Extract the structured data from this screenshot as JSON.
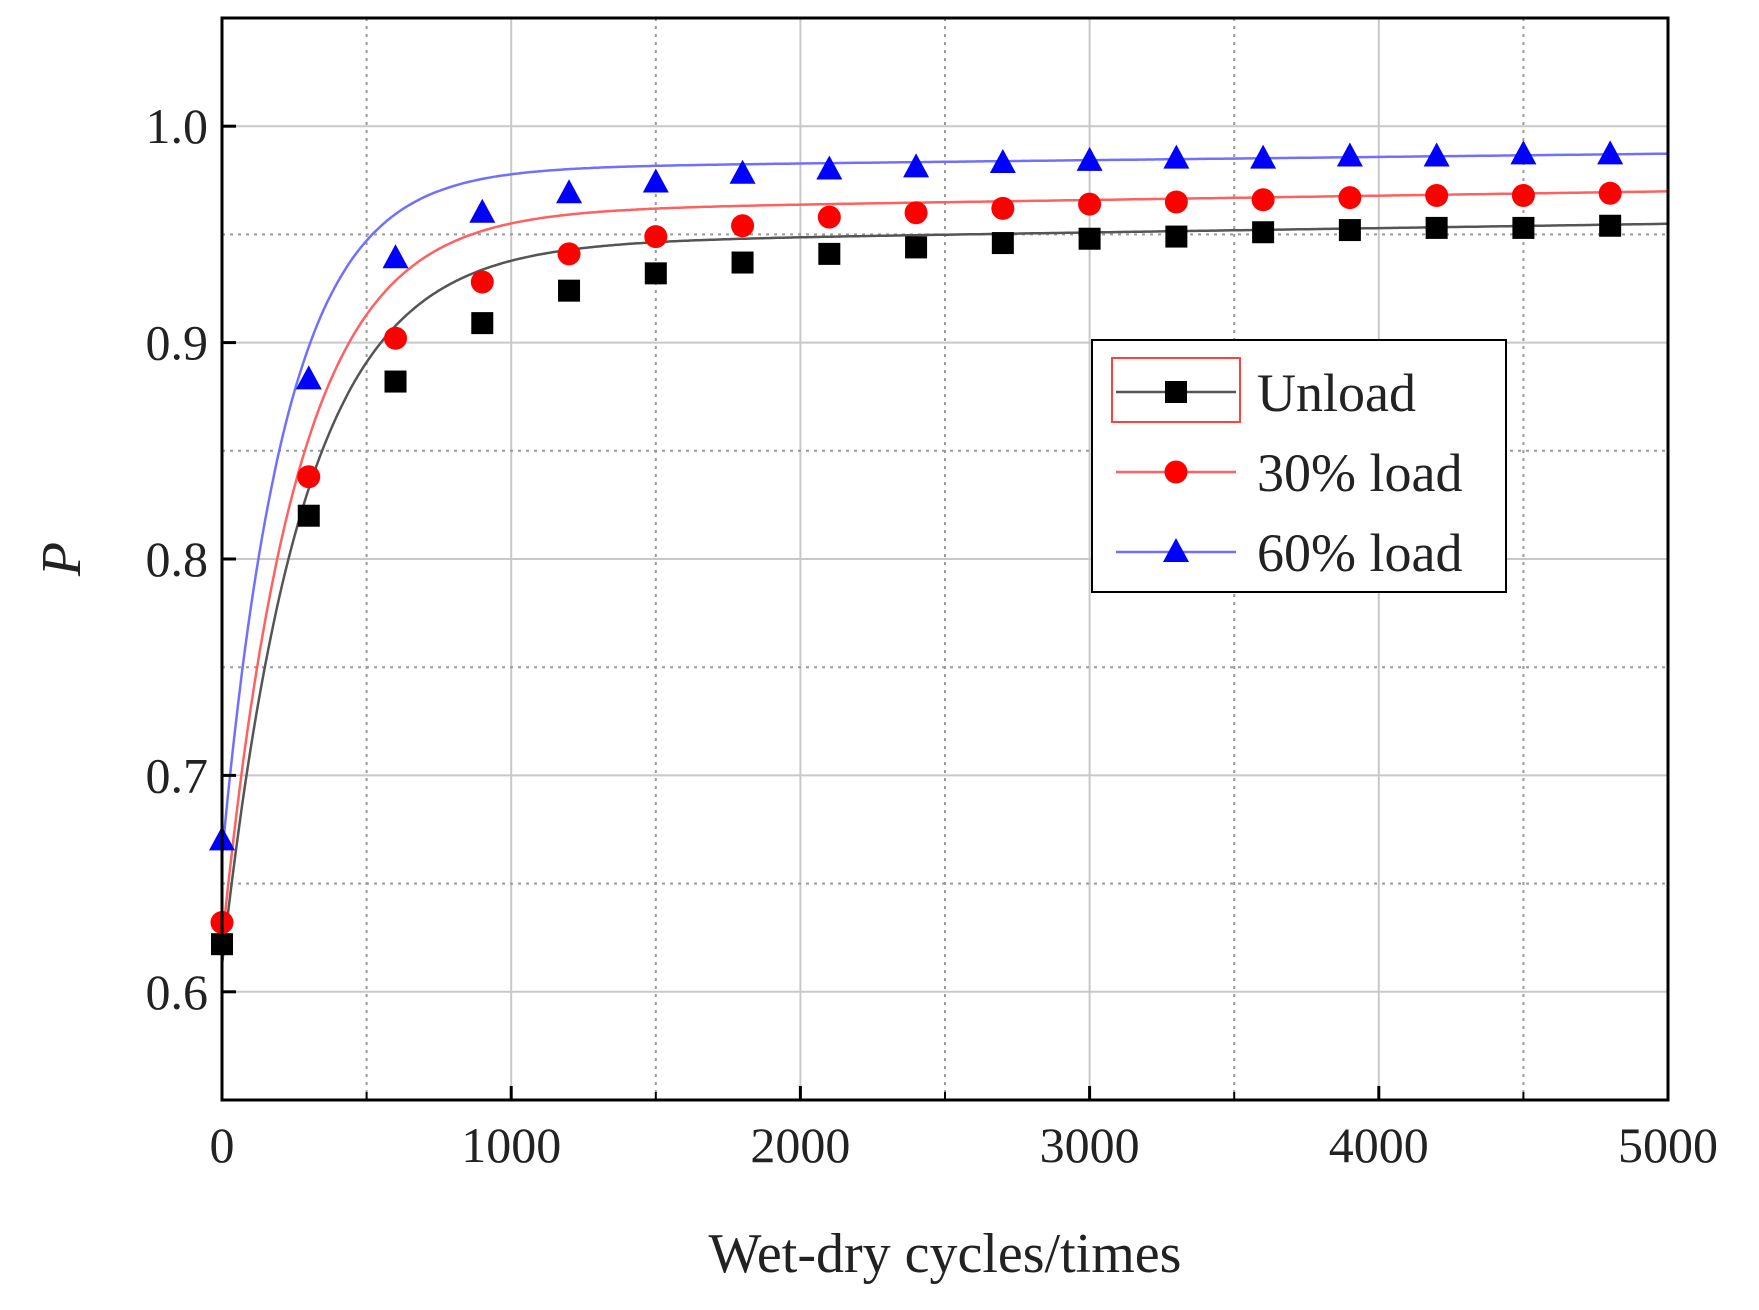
{
  "chart_data": {
    "type": "line",
    "title": "",
    "xlabel": "Wet-dry cycles/times",
    "ylabel": "P",
    "xlim": [
      0,
      5000
    ],
    "ylim": [
      0.55,
      1.05
    ],
    "xticks": [
      0,
      1000,
      2000,
      3000,
      4000,
      5000
    ],
    "xtick_labels": [
      "0",
      "1000",
      "2000",
      "3000",
      "4000",
      "5000"
    ],
    "yticks": [
      0.6,
      0.7,
      0.8,
      0.9,
      1.0
    ],
    "ytick_labels": [
      "0.6",
      "0.7",
      "0.8",
      "0.9",
      "1.0"
    ],
    "grid": true,
    "legend_position": "right-center",
    "x": [
      0,
      300,
      600,
      900,
      1200,
      1500,
      1800,
      2100,
      2400,
      2700,
      3000,
      3300,
      3600,
      3900,
      4200,
      4500,
      4800
    ],
    "series": [
      {
        "name": "Unload",
        "color": "#000000",
        "line_color": "#555555",
        "marker": "square",
        "values": [
          0.622,
          0.82,
          0.882,
          0.909,
          0.924,
          0.932,
          0.937,
          0.941,
          0.944,
          0.946,
          0.948,
          0.949,
          0.951,
          0.952,
          0.953,
          0.953,
          0.954
        ],
        "fit": {
          "a": 0.9545,
          "b": 0.3325,
          "k": 0.0036,
          "c": 2e-06
        }
      },
      {
        "name": "30% load",
        "color": "#ff0000",
        "line_color": "#ff6060",
        "marker": "circle",
        "values": [
          0.632,
          0.838,
          0.902,
          0.928,
          0.941,
          0.949,
          0.954,
          0.958,
          0.96,
          0.962,
          0.964,
          0.965,
          0.966,
          0.967,
          0.968,
          0.968,
          0.969
        ],
        "fit": {
          "a": 0.9695,
          "b": 0.3375,
          "k": 0.0039,
          "c": 2e-06
        }
      },
      {
        "name": "60% load",
        "color": "#0000ff",
        "line_color": "#7070ff",
        "marker": "triangle",
        "values": [
          0.67,
          0.883,
          0.939,
          0.96,
          0.969,
          0.974,
          0.978,
          0.98,
          0.981,
          0.983,
          0.984,
          0.985,
          0.985,
          0.986,
          0.986,
          0.987,
          0.987
        ],
        "fit": {
          "a": 0.987,
          "b": 0.317,
          "k": 0.0045,
          "c": 1.5e-06
        }
      }
    ]
  }
}
